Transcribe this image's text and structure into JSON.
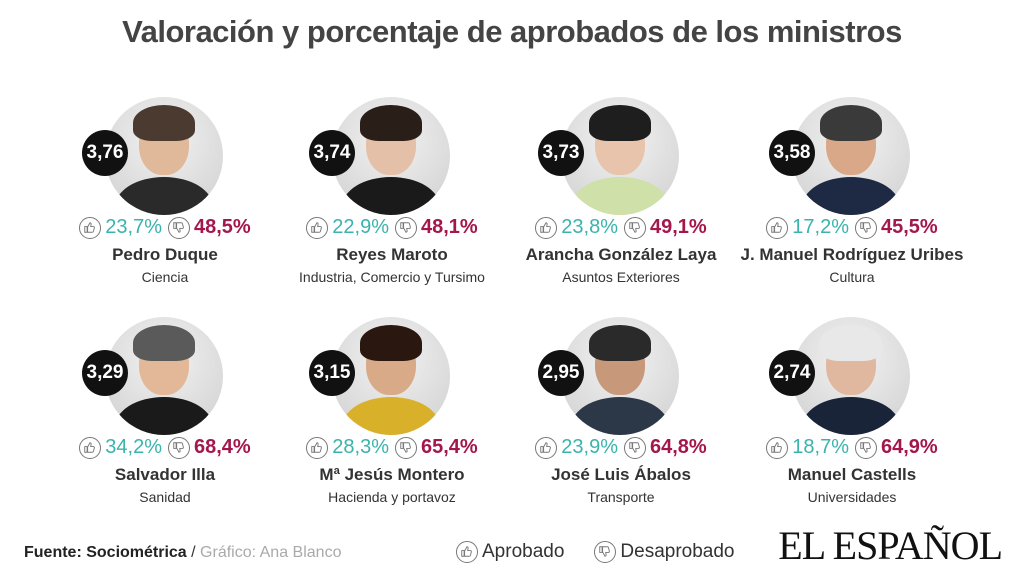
{
  "title": "Valoración y porcentaje de aprobados de los ministros",
  "chart_data": {
    "type": "table",
    "title": "Valoración y porcentaje de aprobados de los ministros",
    "legend": [
      "Aprobado",
      "Desaprobado"
    ],
    "ministers": [
      {
        "name": "Pedro Duque",
        "role": "Ciencia",
        "score": "3,76",
        "aprobado": "23,7%",
        "desaprobado": "48,5%",
        "skin": "#e0b89a",
        "hair": "#4a3a30",
        "body": "#2a2a2a"
      },
      {
        "name": "Reyes Maroto",
        "role": "Industria, Comercio y  Tursimo",
        "score": "3,74",
        "aprobado": "22,9%",
        "desaprobado": "48,1%",
        "skin": "#e4c0a8",
        "hair": "#2a1e18",
        "body": "#1a1a1a"
      },
      {
        "name": "Arancha González Laya",
        "role": "Asuntos  Exteriores",
        "score": "3,73",
        "aprobado": "23,8%",
        "desaprobado": "49,1%",
        "skin": "#e8c4ac",
        "hair": "#1e1e1e",
        "body": "#cfe0a8"
      },
      {
        "name": "J. Manuel Rodríguez Uribes",
        "role": "Cultura",
        "score": "3,58",
        "aprobado": "17,2%",
        "desaprobado": "45,5%",
        "skin": "#d8a888",
        "hair": "#3a3a3a",
        "body": "#1e2a44"
      },
      {
        "name": "Salvador Illa",
        "role": "Sanidad",
        "score": "3,29",
        "aprobado": "34,2%",
        "desaprobado": "68,4%",
        "skin": "#e2b898",
        "hair": "#5a5a5a",
        "body": "#1a1a1a"
      },
      {
        "name": "Mª Jesús Montero",
        "role": "Hacienda y portavoz",
        "score": "3,15",
        "aprobado": "28,3%",
        "desaprobado": "65,4%",
        "skin": "#d8aa88",
        "hair": "#2a1810",
        "body": "#d9b02a"
      },
      {
        "name": "José Luis Ábalos",
        "role": "Transporte",
        "score": "2,95",
        "aprobado": "23,9%",
        "desaprobado": "64,8%",
        "skin": "#c8987a",
        "hair": "#2a2a2a",
        "body": "#2c3848"
      },
      {
        "name": "Manuel Castells",
        "role": "Universidades",
        "score": "2,74",
        "aprobado": "18,7%",
        "desaprobado": "64,9%",
        "skin": "#e0b8a0",
        "hair": "#e8e8e8",
        "body": "#1a2438"
      }
    ]
  },
  "footer": {
    "source_label": "Fuente: Sociométrica",
    "separator": " / ",
    "credit": "Gráfico: Ana Blanco"
  },
  "legend": {
    "aprobado_label": "Aprobado",
    "desaprobado_label": "Desaprobado"
  },
  "brand": "EL ESPAÑOL",
  "colors": {
    "aprobado": "#3bb3ad",
    "desaprobado": "#a3174c",
    "score_bg": "#111111"
  },
  "icons": {
    "aprobado": "thumbs-up-icon",
    "desaprobado": "thumbs-down-icon"
  }
}
